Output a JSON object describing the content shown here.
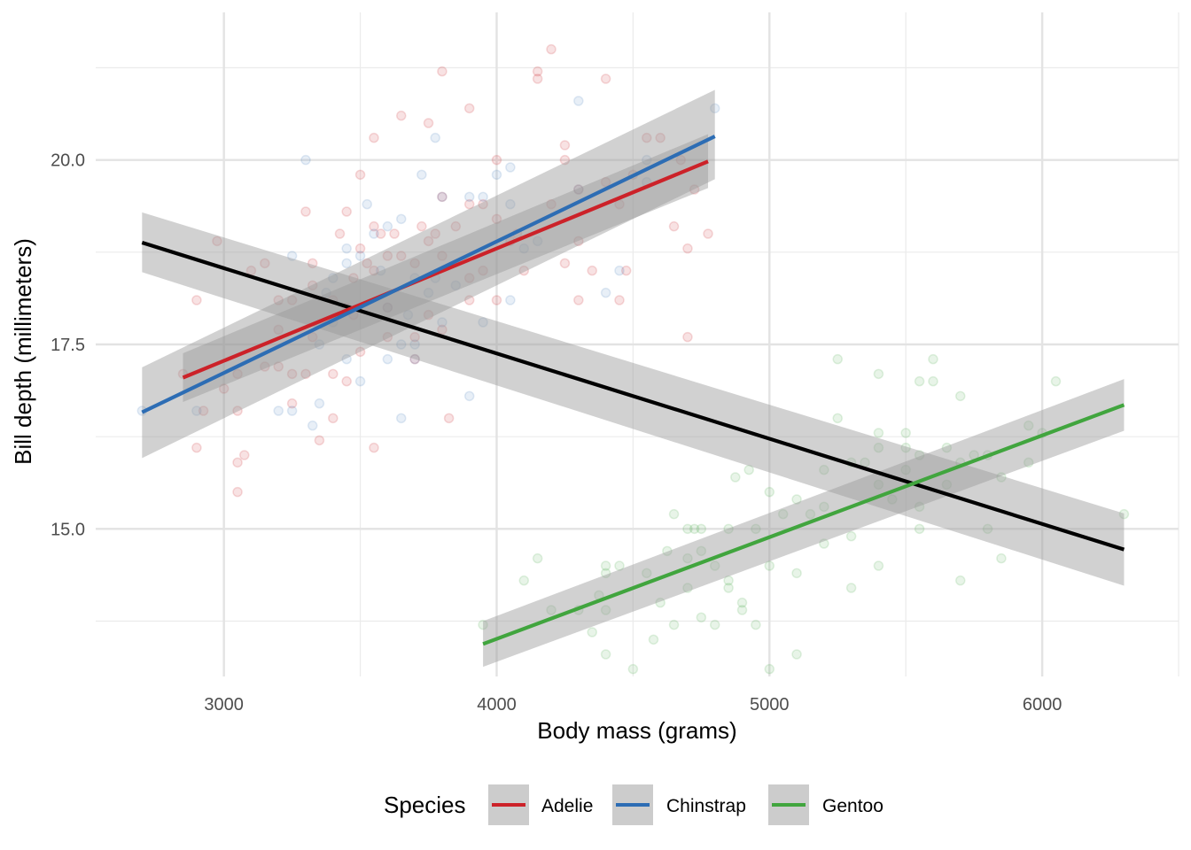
{
  "chart_data": {
    "type": "scatter",
    "xlabel": "Body mass (grams)",
    "ylabel": "Bill depth (millimeters)",
    "xlim": [
      2530,
      6500
    ],
    "ylim": [
      13.0,
      22.0
    ],
    "x_ticks": [
      3000,
      4000,
      5000,
      6000
    ],
    "x_tick_labels": [
      "3000",
      "4000",
      "5000",
      "6000"
    ],
    "y_ticks": [
      15.0,
      17.5,
      20.0
    ],
    "y_tick_labels": [
      "15.0",
      "17.5",
      "20.0"
    ],
    "grid": true,
    "legend": {
      "title": "Species",
      "position": "bottom",
      "entries": [
        "Adelie",
        "Chinstrap",
        "Gentoo"
      ]
    },
    "series": [
      {
        "name": "Adelie",
        "color": "#cc2229",
        "point_alpha": 0.13,
        "points": [
          [
            2850,
            17.1
          ],
          [
            2900,
            18.1
          ],
          [
            2900,
            16.1
          ],
          [
            2925,
            16.6
          ],
          [
            2975,
            18.9
          ],
          [
            3000,
            16.9
          ],
          [
            3050,
            17.1
          ],
          [
            3050,
            16.6
          ],
          [
            3050,
            15.9
          ],
          [
            3050,
            15.5
          ],
          [
            3075,
            16.0
          ],
          [
            3100,
            18.5
          ],
          [
            3150,
            18.6
          ],
          [
            3150,
            17.2
          ],
          [
            3200,
            18.1
          ],
          [
            3200,
            17.2
          ],
          [
            3200,
            17.7
          ],
          [
            3250,
            18.1
          ],
          [
            3250,
            16.7
          ],
          [
            3250,
            17.1
          ],
          [
            3300,
            19.3
          ],
          [
            3300,
            17.1
          ],
          [
            3325,
            18.6
          ],
          [
            3325,
            18.3
          ],
          [
            3325,
            17.6
          ],
          [
            3350,
            16.2
          ],
          [
            3400,
            18.1
          ],
          [
            3400,
            17.1
          ],
          [
            3400,
            16.5
          ],
          [
            3425,
            19.0
          ],
          [
            3450,
            19.3
          ],
          [
            3450,
            18.0
          ],
          [
            3450,
            17.0
          ],
          [
            3475,
            18.4
          ],
          [
            3475,
            17.9
          ],
          [
            3500,
            19.8
          ],
          [
            3500,
            18.8
          ],
          [
            3500,
            17.4
          ],
          [
            3525,
            18.6
          ],
          [
            3550,
            20.3
          ],
          [
            3550,
            19.1
          ],
          [
            3550,
            18.5
          ],
          [
            3550,
            16.1
          ],
          [
            3575,
            19.0
          ],
          [
            3600,
            18.7
          ],
          [
            3600,
            18.0
          ],
          [
            3600,
            17.6
          ],
          [
            3625,
            19.0
          ],
          [
            3650,
            20.6
          ],
          [
            3650,
            18.7
          ],
          [
            3700,
            18.6
          ],
          [
            3700,
            17.6
          ],
          [
            3700,
            17.3
          ],
          [
            3725,
            19.1
          ],
          [
            3750,
            20.5
          ],
          [
            3750,
            18.9
          ],
          [
            3750,
            17.9
          ],
          [
            3775,
            19.0
          ],
          [
            3800,
            21.2
          ],
          [
            3800,
            19.5
          ],
          [
            3800,
            18.7
          ],
          [
            3800,
            17.7
          ],
          [
            3825,
            16.5
          ],
          [
            3850,
            19.1
          ],
          [
            3900,
            20.7
          ],
          [
            3900,
            19.4
          ],
          [
            3900,
            18.4
          ],
          [
            3900,
            18.1
          ],
          [
            3950,
            19.4
          ],
          [
            3950,
            18.5
          ],
          [
            4000,
            20.0
          ],
          [
            4000,
            19.2
          ],
          [
            4000,
            18.1
          ],
          [
            4050,
            18.9
          ],
          [
            4075,
            19.0
          ],
          [
            4100,
            18.5
          ],
          [
            4150,
            21.2
          ],
          [
            4150,
            21.1
          ],
          [
            4200,
            21.5
          ],
          [
            4200,
            19.4
          ],
          [
            4250,
            20.2
          ],
          [
            4250,
            20.0
          ],
          [
            4250,
            18.6
          ],
          [
            4300,
            19.6
          ],
          [
            4300,
            18.9
          ],
          [
            4300,
            18.1
          ],
          [
            4350,
            18.5
          ],
          [
            4400,
            21.1
          ],
          [
            4400,
            19.7
          ],
          [
            4450,
            19.4
          ],
          [
            4450,
            18.1
          ],
          [
            4475,
            18.5
          ],
          [
            4500,
            19.8
          ],
          [
            4550,
            20.3
          ],
          [
            4600,
            20.3
          ],
          [
            4650,
            19.1
          ],
          [
            4675,
            20.0
          ],
          [
            4700,
            18.8
          ],
          [
            4700,
            17.6
          ],
          [
            4725,
            19.6
          ],
          [
            4775,
            19.0
          ]
        ],
        "fit": {
          "x": [
            2850,
            4775
          ],
          "y": [
            17.05,
            19.98
          ],
          "ci_low": [
            16.72,
            19.62
          ],
          "ci_high": [
            17.38,
            20.35
          ]
        }
      },
      {
        "name": "Chinstrap",
        "color": "#2d6db4",
        "point_alpha": 0.11,
        "points": [
          [
            2700,
            16.6
          ],
          [
            2900,
            16.6
          ],
          [
            3200,
            16.6
          ],
          [
            3250,
            16.6
          ],
          [
            3250,
            18.7
          ],
          [
            3300,
            20.0
          ],
          [
            3325,
            16.4
          ],
          [
            3350,
            17.5
          ],
          [
            3350,
            16.7
          ],
          [
            3375,
            18.2
          ],
          [
            3400,
            18.4
          ],
          [
            3400,
            17.8
          ],
          [
            3450,
            18.8
          ],
          [
            3450,
            18.6
          ],
          [
            3450,
            17.3
          ],
          [
            3500,
            18.7
          ],
          [
            3500,
            17.0
          ],
          [
            3525,
            19.4
          ],
          [
            3550,
            19.0
          ],
          [
            3575,
            18.5
          ],
          [
            3600,
            19.1
          ],
          [
            3600,
            18.0
          ],
          [
            3600,
            17.3
          ],
          [
            3650,
            19.2
          ],
          [
            3650,
            17.5
          ],
          [
            3650,
            16.5
          ],
          [
            3675,
            17.9
          ],
          [
            3700,
            18.4
          ],
          [
            3700,
            17.5
          ],
          [
            3700,
            17.3
          ],
          [
            3725,
            19.8
          ],
          [
            3750,
            18.2
          ],
          [
            3775,
            20.3
          ],
          [
            3775,
            18.4
          ],
          [
            3800,
            19.5
          ],
          [
            3800,
            17.8
          ],
          [
            3850,
            18.3
          ],
          [
            3900,
            19.5
          ],
          [
            3900,
            16.8
          ],
          [
            3950,
            19.5
          ],
          [
            3950,
            17.8
          ],
          [
            4000,
            19.8
          ],
          [
            4050,
            19.9
          ],
          [
            4050,
            19.4
          ],
          [
            4050,
            18.1
          ],
          [
            4100,
            18.8
          ],
          [
            4150,
            18.9
          ],
          [
            4300,
            20.8
          ],
          [
            4300,
            19.6
          ],
          [
            4400,
            18.2
          ],
          [
            4450,
            18.5
          ],
          [
            4550,
            19.7
          ],
          [
            4550,
            20.0
          ],
          [
            4800,
            20.7
          ]
        ],
        "fit": {
          "x": [
            2700,
            4800
          ],
          "y": [
            16.58,
            20.32
          ],
          "ci_low": [
            15.96,
            19.74
          ],
          "ci_high": [
            17.19,
            20.95
          ]
        }
      },
      {
        "name": "Gentoo",
        "color": "#41a53e",
        "point_alpha": 0.12,
        "points": [
          [
            3950,
            13.7
          ],
          [
            4100,
            14.3
          ],
          [
            4150,
            14.6
          ],
          [
            4200,
            13.9
          ],
          [
            4300,
            13.9
          ],
          [
            4350,
            13.6
          ],
          [
            4375,
            14.1
          ],
          [
            4400,
            14.5
          ],
          [
            4400,
            13.9
          ],
          [
            4400,
            14.4
          ],
          [
            4400,
            13.3
          ],
          [
            4450,
            14.5
          ],
          [
            4500,
            13.1
          ],
          [
            4550,
            14.4
          ],
          [
            4575,
            13.5
          ],
          [
            4600,
            14.0
          ],
          [
            4625,
            14.7
          ],
          [
            4650,
            15.2
          ],
          [
            4650,
            13.7
          ],
          [
            4700,
            15.0
          ],
          [
            4700,
            14.2
          ],
          [
            4700,
            14.6
          ],
          [
            4725,
            15.0
          ],
          [
            4750,
            15.0
          ],
          [
            4750,
            14.7
          ],
          [
            4750,
            13.8
          ],
          [
            4800,
            14.5
          ],
          [
            4800,
            13.7
          ],
          [
            4850,
            15.0
          ],
          [
            4850,
            14.3
          ],
          [
            4850,
            14.2
          ],
          [
            4875,
            15.7
          ],
          [
            4900,
            14.0
          ],
          [
            4900,
            13.9
          ],
          [
            4925,
            15.8
          ],
          [
            4950,
            15.0
          ],
          [
            4950,
            13.7
          ],
          [
            5000,
            15.5
          ],
          [
            5000,
            14.5
          ],
          [
            5000,
            13.1
          ],
          [
            5050,
            15.2
          ],
          [
            5100,
            15.4
          ],
          [
            5100,
            14.4
          ],
          [
            5100,
            13.3
          ],
          [
            5150,
            15.2
          ],
          [
            5200,
            15.8
          ],
          [
            5200,
            14.8
          ],
          [
            5200,
            15.3
          ],
          [
            5250,
            16.5
          ],
          [
            5250,
            17.3
          ],
          [
            5300,
            15.9
          ],
          [
            5300,
            14.2
          ],
          [
            5300,
            14.9
          ],
          [
            5350,
            15.9
          ],
          [
            5400,
            17.1
          ],
          [
            5400,
            16.3
          ],
          [
            5400,
            16.1
          ],
          [
            5400,
            15.6
          ],
          [
            5400,
            14.5
          ],
          [
            5450,
            15.4
          ],
          [
            5500,
            16.3
          ],
          [
            5500,
            16.1
          ],
          [
            5500,
            15.8
          ],
          [
            5550,
            17.0
          ],
          [
            5550,
            16.0
          ],
          [
            5550,
            15.3
          ],
          [
            5550,
            15.0
          ],
          [
            5600,
            17.3
          ],
          [
            5600,
            17.0
          ],
          [
            5650,
            16.1
          ],
          [
            5650,
            15.6
          ],
          [
            5700,
            16.8
          ],
          [
            5700,
            15.9
          ],
          [
            5700,
            14.3
          ],
          [
            5750,
            16.0
          ],
          [
            5800,
            16.0
          ],
          [
            5800,
            15.0
          ],
          [
            5850,
            15.7
          ],
          [
            5850,
            14.6
          ],
          [
            5950,
            16.4
          ],
          [
            5950,
            15.9
          ],
          [
            6000,
            16.3
          ],
          [
            6050,
            17.0
          ],
          [
            6300,
            15.2
          ]
        ],
        "fit": {
          "x": [
            3950,
            6300
          ],
          "y": [
            13.44,
            16.68
          ],
          "ci_low": [
            13.13,
            16.33
          ],
          "ci_high": [
            13.75,
            17.03
          ]
        }
      }
    ],
    "overall_fit": {
      "color": "#000000",
      "x": [
        2700,
        6300
      ],
      "y": [
        18.88,
        14.72
      ],
      "ci_low": [
        18.48,
        14.23
      ],
      "ci_high": [
        19.29,
        15.21
      ]
    },
    "ribbon_color": "#999999"
  }
}
